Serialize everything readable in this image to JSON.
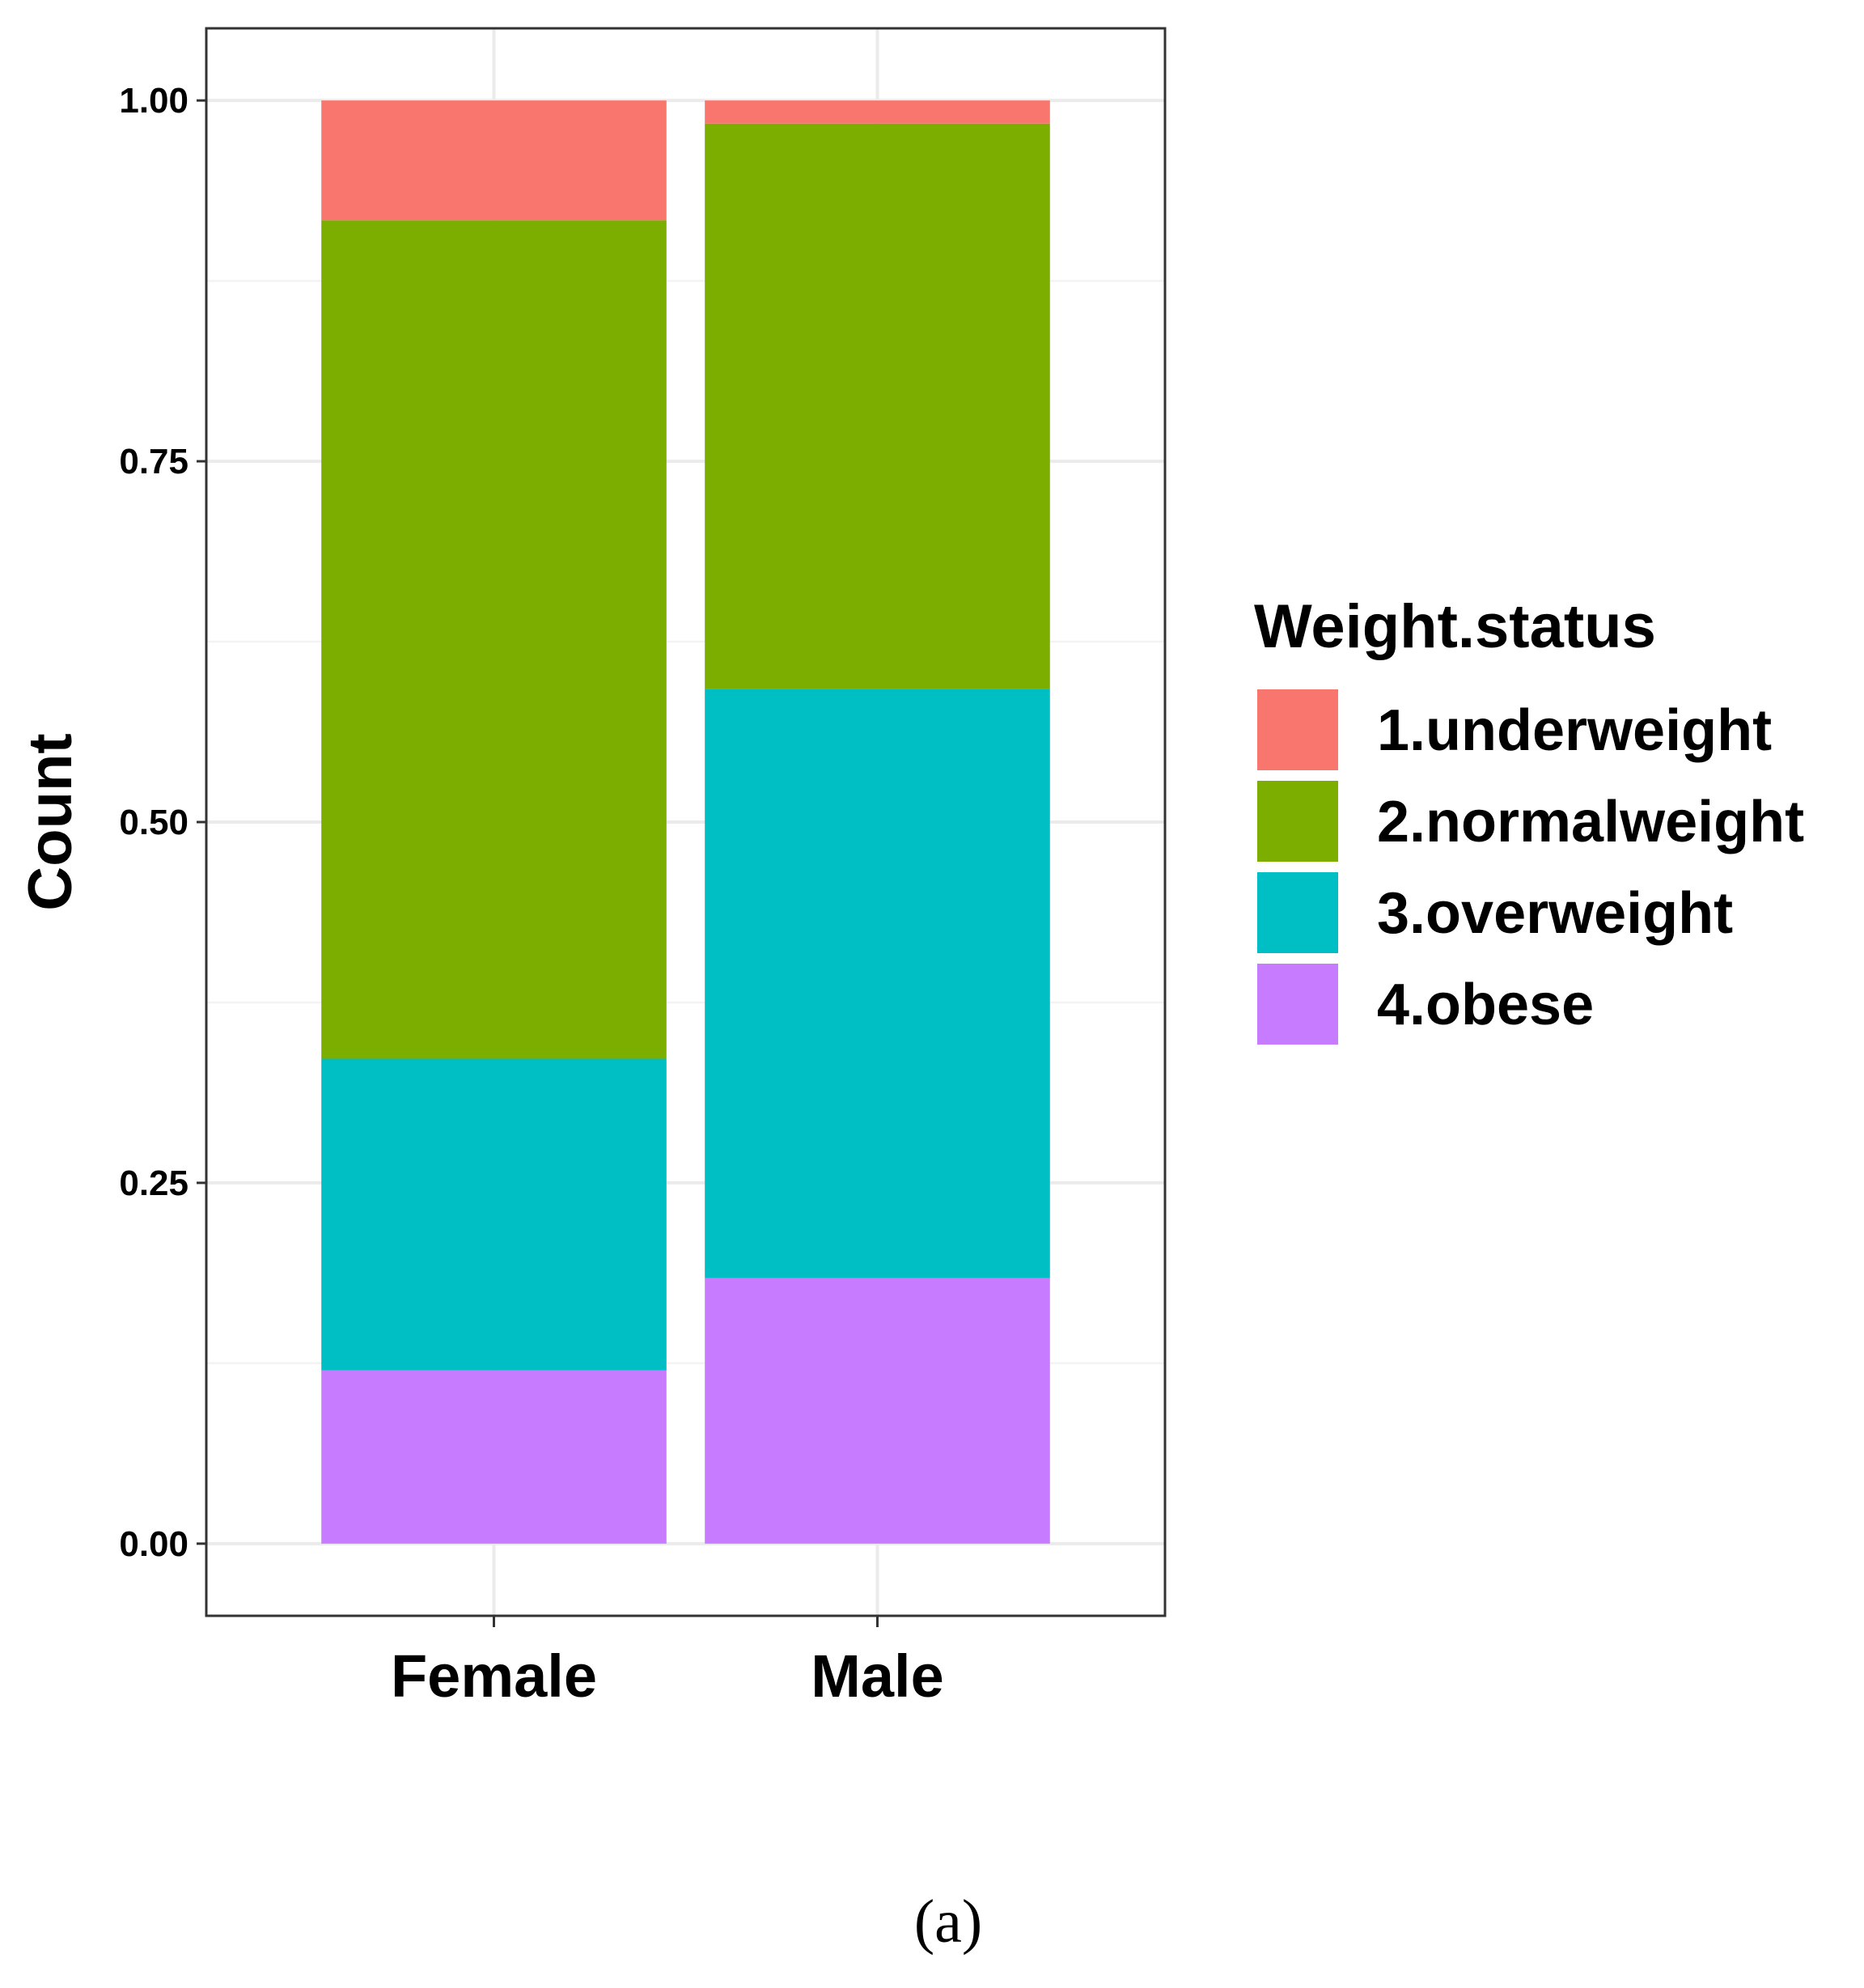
{
  "chart_data": {
    "type": "bar",
    "stacked": true,
    "categories": [
      "Female",
      "Male"
    ],
    "series": [
      {
        "name": "1.underweight",
        "values": [
          0.083,
          0.016
        ],
        "color": "#F8766D"
      },
      {
        "name": "2.normalweight",
        "values": [
          0.581,
          0.392
        ],
        "color": "#7CAE00"
      },
      {
        "name": "3.overweight",
        "values": [
          0.216,
          0.408
        ],
        "color": "#00BFC4"
      },
      {
        "name": "4.obese",
        "values": [
          0.12,
          0.184
        ],
        "color": "#C77CFF"
      }
    ],
    "yticks": [
      "0.00",
      "0.25",
      "0.50",
      "0.75",
      "1.00"
    ],
    "ylim": [
      -0.05,
      1.05
    ],
    "xlabel": "",
    "ylabel": "Count",
    "legend_title": "Weight.status",
    "legend_position": "right",
    "grid": true,
    "caption": "(a)"
  }
}
